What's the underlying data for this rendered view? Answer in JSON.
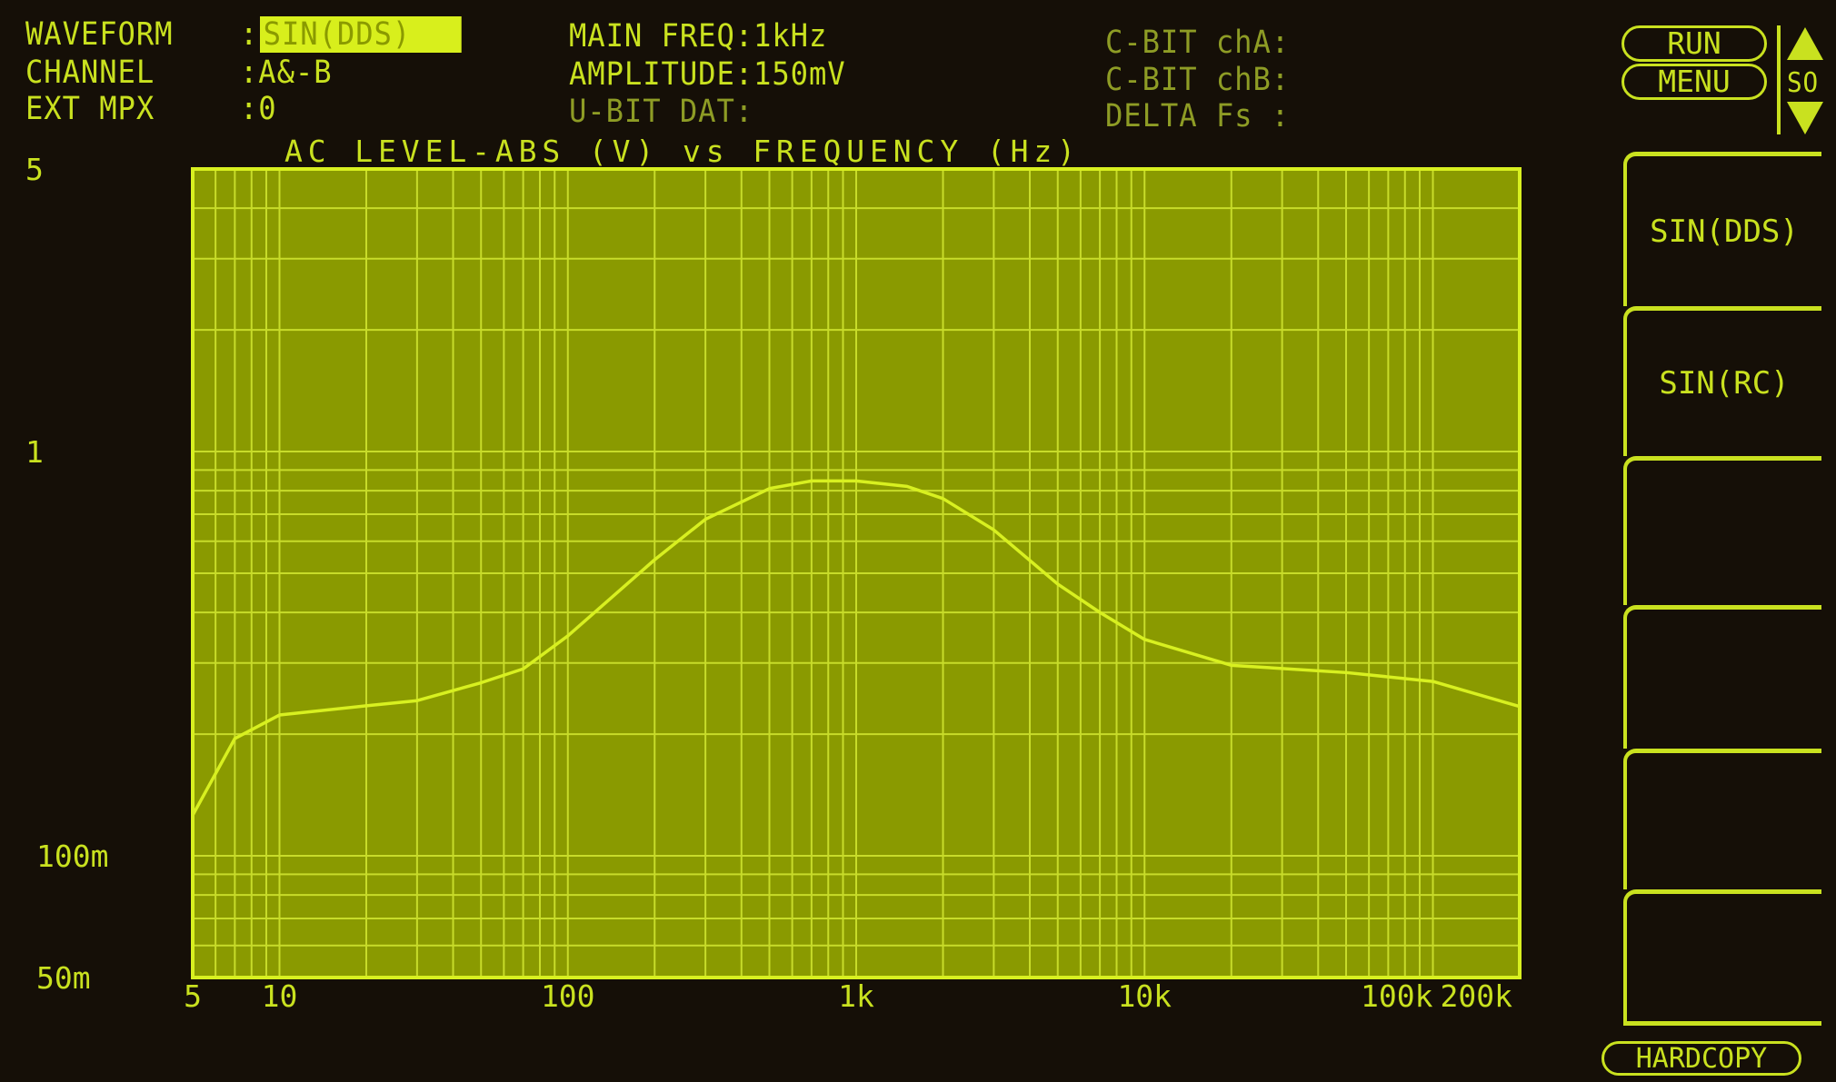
{
  "header": {
    "waveform_label": "WAVEFORM",
    "waveform_value": "SIN(DDS)",
    "channel_label": "CHANNEL",
    "channel_value": "A&-B",
    "ext_mpx_label": "EXT MPX",
    "ext_mpx_value": "0",
    "main_freq": "MAIN FREQ:1kHz",
    "amplitude": "AMPLITUDE:150mV",
    "ubit": "U-BIT DAT:",
    "cbit_a": "C-BIT chA:",
    "cbit_b": "C-BIT chB:",
    "delta_fs": "DELTA Fs :"
  },
  "controls": {
    "run": "RUN",
    "menu": "MENU",
    "scroll_label": "SO",
    "hardcopy": "HARDCOPY",
    "softkeys": [
      "SIN(DDS)",
      "SIN(RC)",
      "",
      "",
      "",
      ""
    ]
  },
  "colors": {
    "background": "#150f07",
    "plot": "#8a9a00",
    "trace": "#d8f020",
    "text": "#c9e11f"
  },
  "chart_data": {
    "type": "line",
    "title": "AC LEVEL-ABS (V) vs FREQUENCY (Hz)",
    "x_scale": "log",
    "y_scale": "log",
    "xlim": [
      5,
      200000
    ],
    "ylim": [
      0.05,
      5
    ],
    "grid": true,
    "x_ticks": [
      {
        "v": 5,
        "label": "5"
      },
      {
        "v": 10,
        "label": "10"
      },
      {
        "v": 100,
        "label": "100"
      },
      {
        "v": 1000,
        "label": "1k"
      },
      {
        "v": 10000,
        "label": "10k"
      },
      {
        "v": 100000,
        "label": "100k"
      },
      {
        "v": 200000,
        "label": "200k"
      }
    ],
    "y_ticks": [
      {
        "v": 5,
        "label": "5"
      },
      {
        "v": 1,
        "label": "1"
      },
      {
        "v": 0.1,
        "label": "100m"
      },
      {
        "v": 0.05,
        "label": "50m"
      }
    ],
    "series": [
      {
        "x": [
          5,
          7,
          10,
          20,
          30,
          50,
          70,
          100,
          200,
          300,
          500,
          700,
          1000,
          1500,
          2000,
          3000,
          5000,
          7000,
          10000,
          20000,
          50000,
          100000,
          200000
        ],
        "y": [
          0.126,
          0.195,
          0.223,
          0.235,
          0.242,
          0.268,
          0.29,
          0.35,
          0.54,
          0.68,
          0.81,
          0.846,
          0.846,
          0.82,
          0.765,
          0.64,
          0.47,
          0.4,
          0.343,
          0.296,
          0.284,
          0.27,
          0.234
        ]
      }
    ]
  }
}
